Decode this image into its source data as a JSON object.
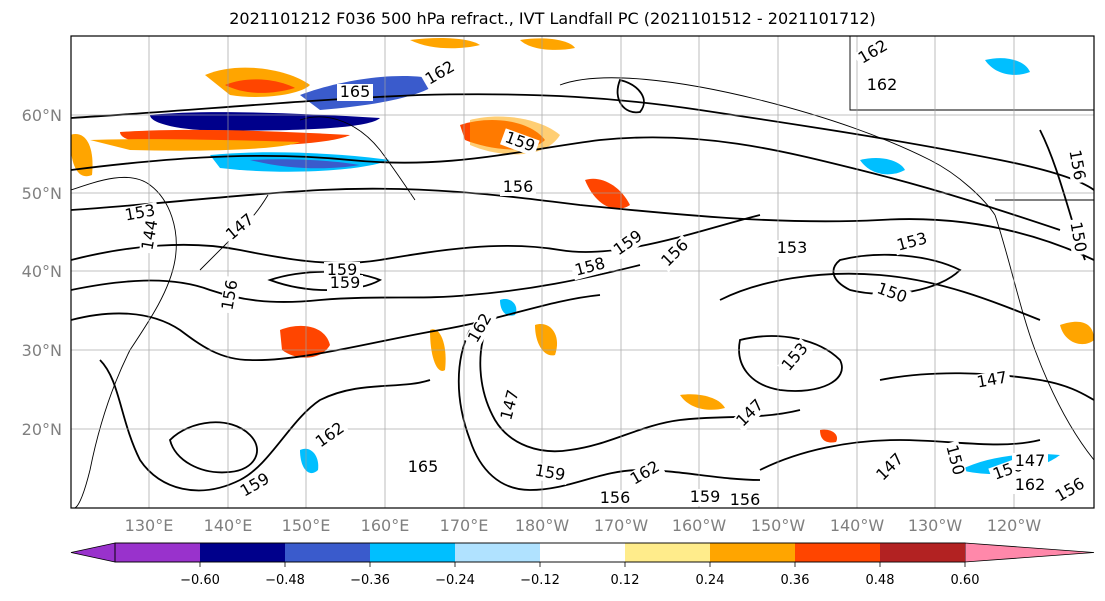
{
  "title": "2021101212 F036 500 hPa refract., IVT Landfall PC (2021101512 - 2021101712)",
  "lat_labels": [
    "60°N",
    "50°N",
    "40°N",
    "30°N",
    "20°N"
  ],
  "lon_labels": [
    "130°E",
    "140°E",
    "150°E",
    "160°E",
    "170°E",
    "180°W",
    "170°W",
    "160°W",
    "150°W",
    "140°W",
    "130°W",
    "120°W"
  ],
  "contour_labels": [
    "165",
    "162",
    "162",
    "162",
    "159",
    "156",
    "153",
    "156",
    "150",
    "144",
    "147",
    "159",
    "159",
    "158",
    "159",
    "156",
    "156",
    "162",
    "147",
    "165",
    "159",
    "162",
    "156",
    "159",
    "156",
    "153",
    "153",
    "150",
    "153",
    "147",
    "147",
    "147",
    "150",
    "156",
    "147",
    "162",
    "156",
    "159",
    "162"
  ],
  "colorbar": {
    "ticks": [
      "−0.60",
      "−0.48",
      "−0.36",
      "−0.24",
      "−0.12",
      "0.12",
      "0.24",
      "0.36",
      "0.48",
      "0.60"
    ],
    "colors": [
      "#9932cc",
      "#00008b",
      "#3a5bcc",
      "#00bfff",
      "#b0e2ff",
      "#ffffff",
      "#ffec8b",
      "#ffa500",
      "#ff4500",
      "#b22222",
      "#ff88aa"
    ]
  }
}
